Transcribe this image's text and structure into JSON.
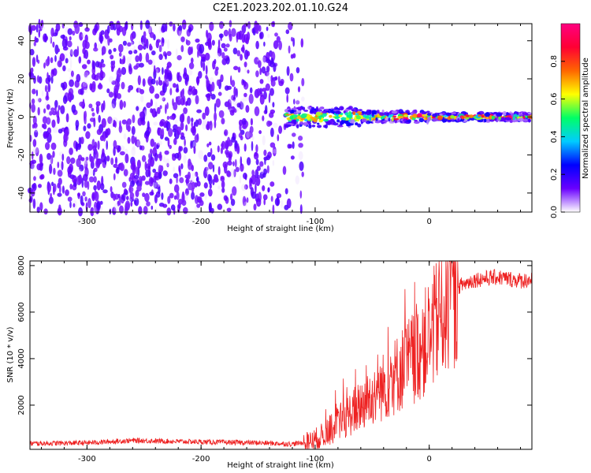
{
  "title": "C2E1.2023.202.01.10.G24",
  "colors": {
    "snr_line": "#ee2222",
    "axes": "#000000",
    "background": "#ffffff"
  },
  "chart_data": [
    {
      "type": "heatmap",
      "title": "C2E1.2023.202.01.10.G24",
      "xlabel": "Height of straight line (km)",
      "ylabel": "Frequency (Hz)",
      "xlim": [
        -350,
        90
      ],
      "ylim": [
        -50,
        49
      ],
      "xticks": [
        -300,
        -200,
        -100,
        0
      ],
      "xtick_labels": [
        "-300",
        "-200",
        "-100",
        "0"
      ],
      "yticks": [
        -40,
        -20,
        0,
        20,
        40
      ],
      "ytick_labels": [
        "-40",
        "-20",
        "0",
        "20",
        "40"
      ],
      "colorbar": {
        "label": "Normalized spectral amplitude",
        "range": [
          0,
          1
        ],
        "ticks": [
          0.0,
          0.2,
          0.4,
          0.6,
          0.8
        ],
        "tick_labels": [
          "0.0",
          "0.2",
          "0.4",
          "0.6",
          "0.8"
        ],
        "colormap": [
          "#ffffff",
          "#6a00ff",
          "#0000ff",
          "#00ccff",
          "#00ff66",
          "#ffff00",
          "#ff6600",
          "#ff0033",
          "#ff0080"
        ]
      },
      "features": {
        "noise_region_x": [
          -350,
          -110
        ],
        "signal_line_x": [
          -125,
          90
        ],
        "signal_line_freq_hz": 0,
        "noise_level": 0.25,
        "signal_level": 0.6
      }
    },
    {
      "type": "line",
      "xlabel": "Height of straight line (km)",
      "ylabel": "SNR (10 * v/v)",
      "xlim": [
        -350,
        90
      ],
      "ylim": [
        100,
        8200
      ],
      "xticks": [
        -300,
        -200,
        -100,
        0
      ],
      "xtick_labels": [
        "-300",
        "-200",
        "-100",
        "0"
      ],
      "yticks": [
        2000,
        4000,
        6000,
        8000
      ],
      "ytick_labels": [
        "2000",
        "4000",
        "6000",
        "8000"
      ],
      "series": [
        {
          "color": "#ee2222",
          "x": [
            -350,
            -300,
            -260,
            -200,
            -150,
            -120,
            -105,
            -95,
            -85,
            -75,
            -65,
            -55,
            -45,
            -35,
            -25,
            -15,
            -5,
            5,
            15,
            25,
            40,
            60,
            80,
            90
          ],
          "y": [
            350,
            380,
            480,
            420,
            380,
            330,
            420,
            650,
            1000,
            1400,
            1800,
            2200,
            2600,
            3000,
            3500,
            4000,
            4600,
            5400,
            6400,
            7100,
            7400,
            7500,
            7350,
            7400
          ]
        }
      ]
    }
  ]
}
